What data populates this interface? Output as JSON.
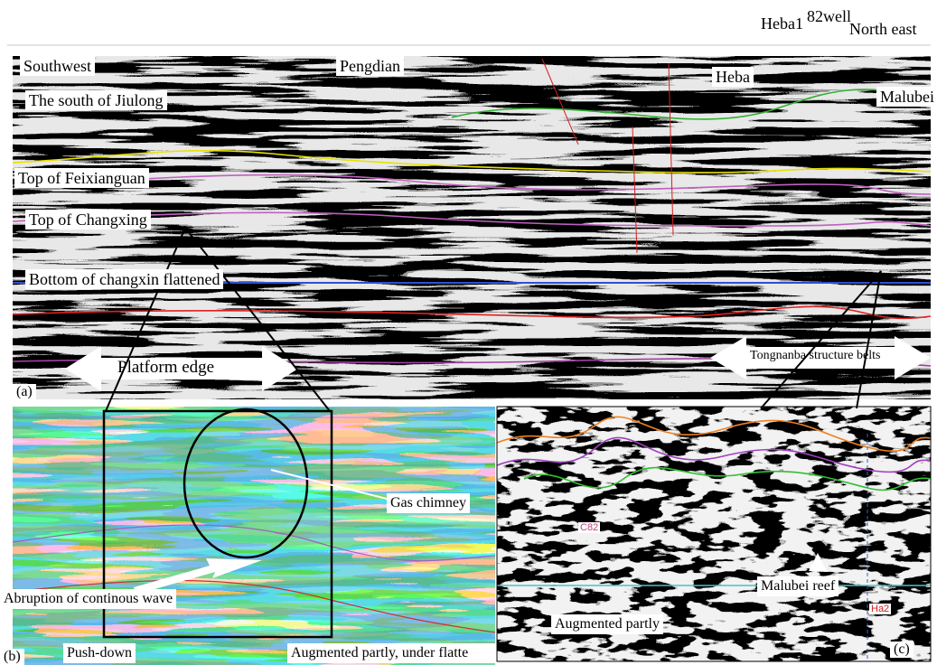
{
  "panel_a": {
    "label": "(a)",
    "top_labels": [
      "Heba1",
      "82well",
      "North east"
    ],
    "boxes": [
      "Southwest",
      "Pengdian",
      "The south of Jiulong",
      "Heba",
      "Malubei",
      "Top of Feixianguan",
      "Top of Changxing",
      "Bottom of changxin flattened"
    ],
    "arrows": [
      "Platform edge",
      "Tongnanba structure belts"
    ]
  },
  "panel_b": {
    "label": "(b)",
    "texts": [
      "Gas chimney",
      "Abruption of continous wave",
      "Push-down",
      "Augmented partly, under flatte"
    ]
  },
  "panel_c": {
    "label": "(c)",
    "texts": [
      "Malubei reef",
      "Augmented partly",
      "C82",
      "Ha2"
    ]
  }
}
